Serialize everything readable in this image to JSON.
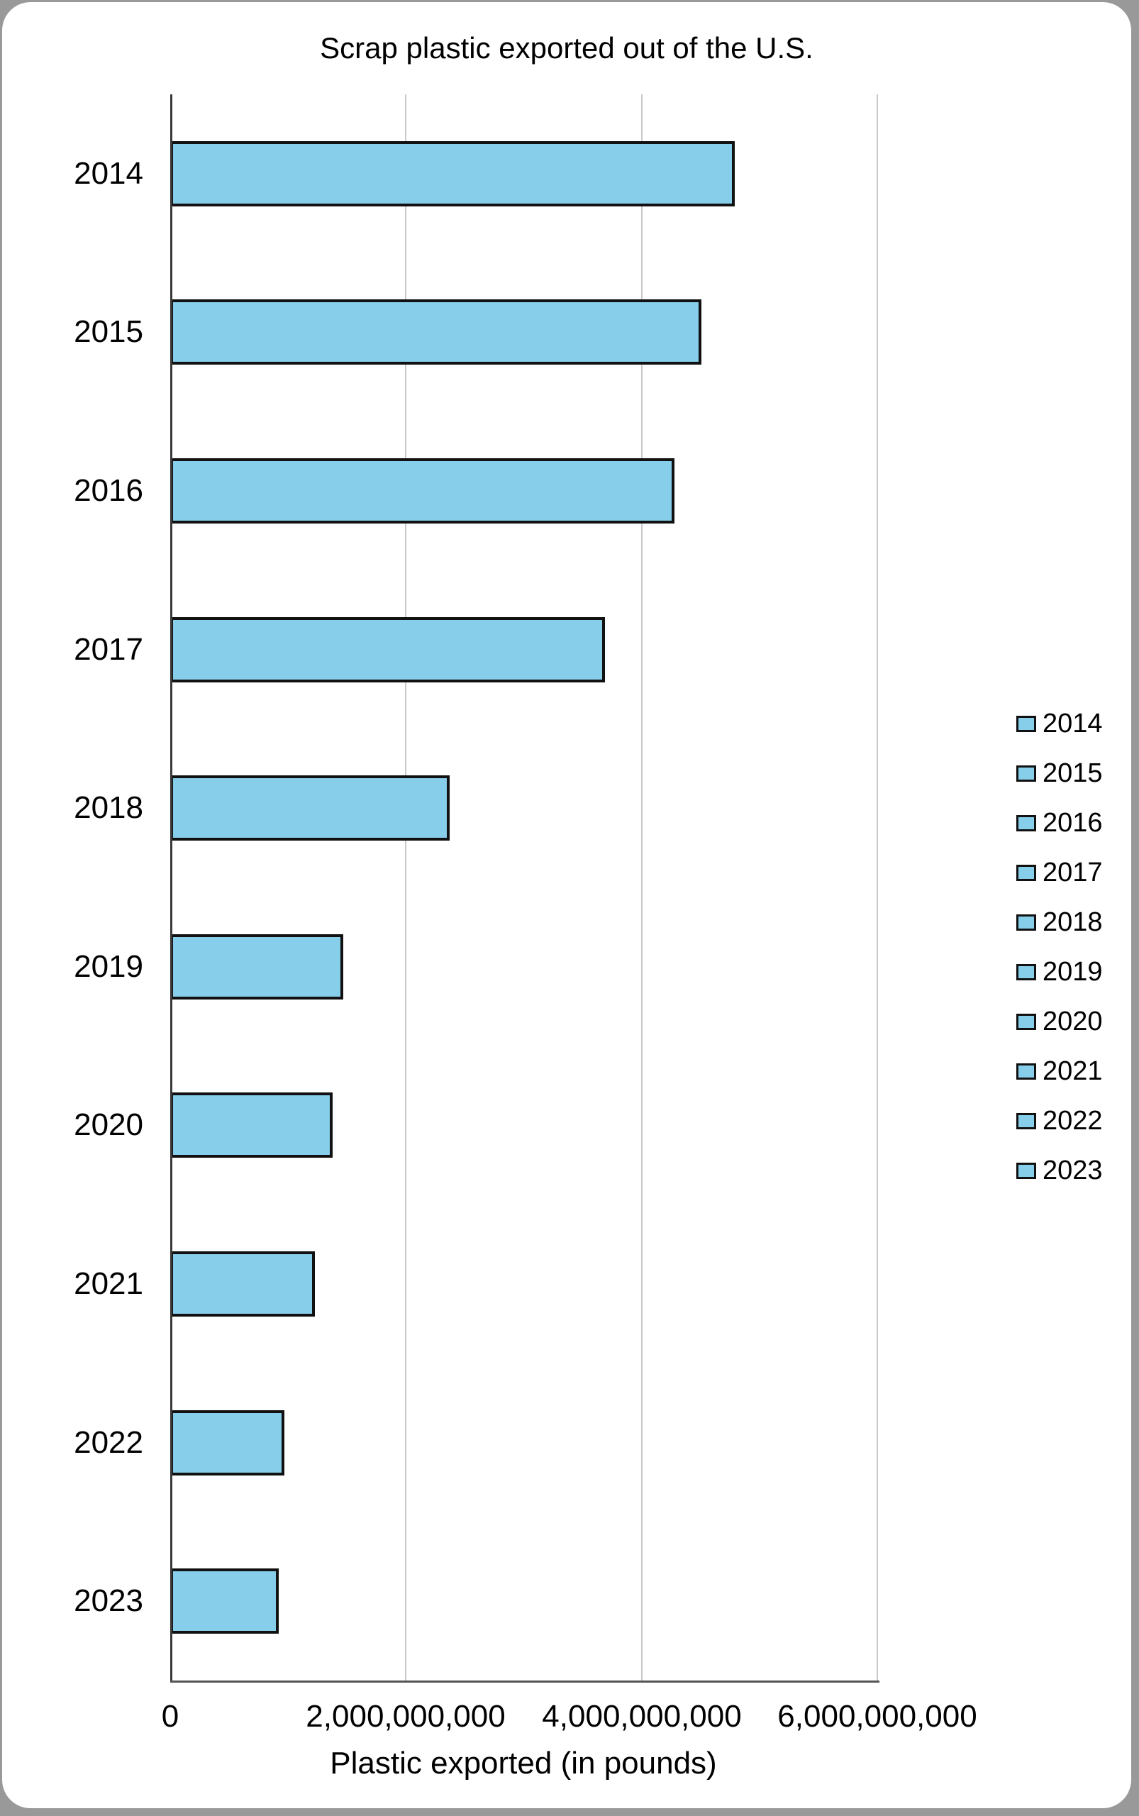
{
  "title": "Scrap plastic exported out of the U.S.",
  "chart_data": {
    "type": "bar",
    "orientation": "horizontal",
    "title": "Scrap plastic exported out of the U.S.",
    "categories": [
      "2014",
      "2015",
      "2016",
      "2017",
      "2018",
      "2019",
      "2020",
      "2021",
      "2022",
      "2023"
    ],
    "values": [
      4790000000,
      4510000000,
      4280000000,
      3690000000,
      2370000000,
      1470000000,
      1380000000,
      1230000000,
      970000000,
      920000000
    ],
    "xlabel": "Plastic exported (in pounds)",
    "ylabel": "",
    "xlim": [
      0,
      6000000000
    ],
    "x_ticks": [
      0,
      2000000000,
      4000000000,
      6000000000
    ],
    "x_tick_labels": [
      "0",
      "2,000,000,000",
      "4,000,000,000",
      "6,000,000,000"
    ],
    "grid": true,
    "legend": {
      "position": "right",
      "entries": [
        "2014",
        "2015",
        "2016",
        "2017",
        "2018",
        "2019",
        "2020",
        "2021",
        "2022",
        "2023"
      ]
    },
    "colors": {
      "bar_fill": "#87CEEB",
      "bar_border": "#111111",
      "gridline": "#c9c9c9",
      "axis": "#444444",
      "frame_background": "#999999",
      "card_background": "#ffffff",
      "text": "#000000"
    }
  }
}
